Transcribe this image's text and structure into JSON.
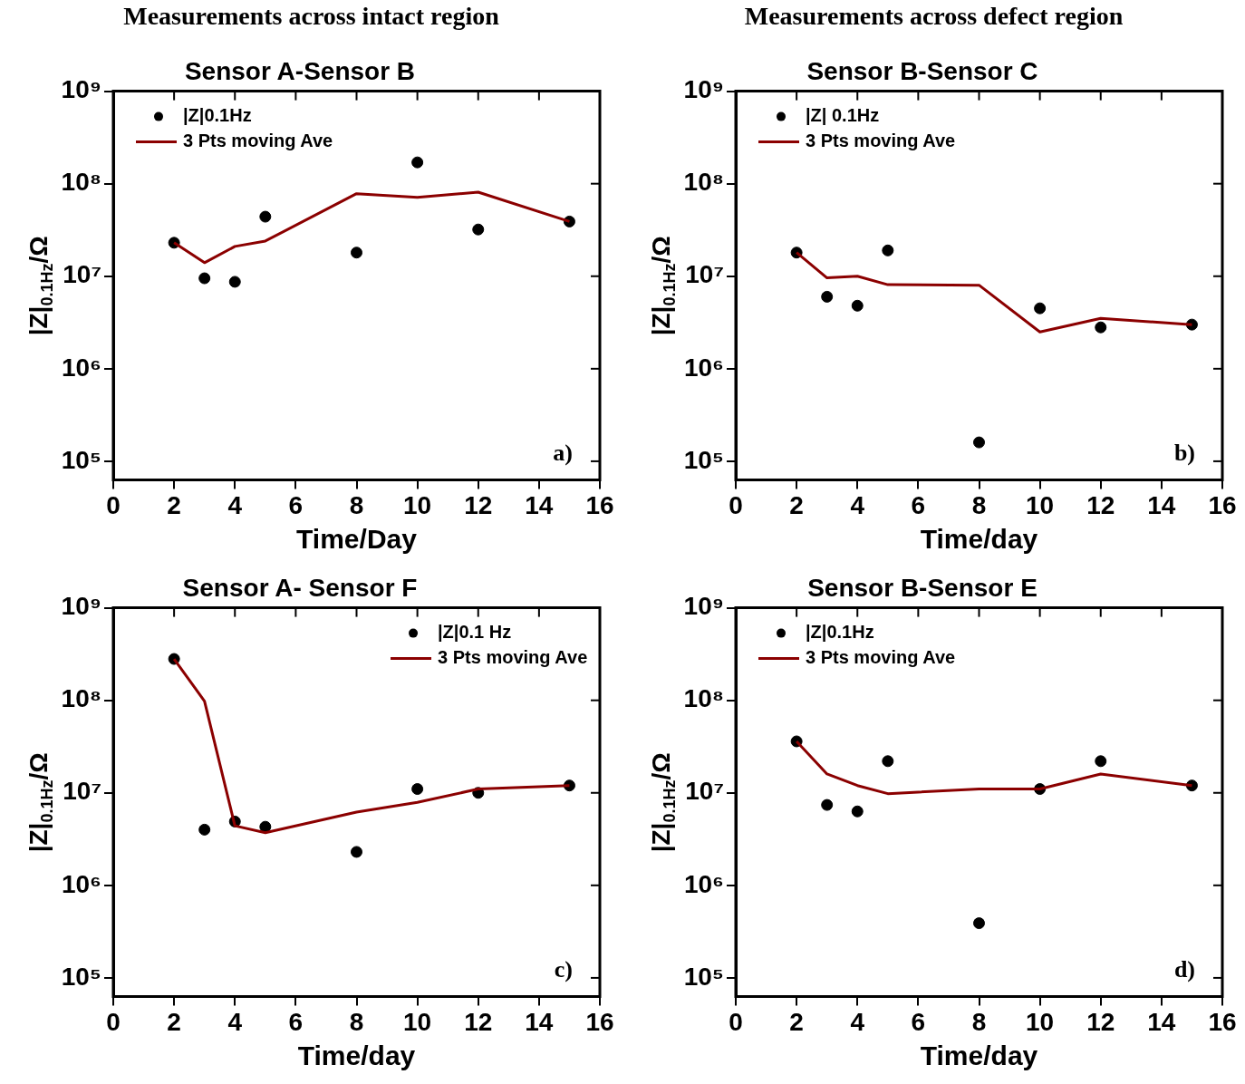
{
  "chart_data": [
    {
      "type": "scatter",
      "title": "Sensor A-Sensor B",
      "xlabel": "Time/Day",
      "ylabel": "|Z|$_{0.1Hz}$/Ω",
      "annotations": [
        "Measurements across intact region",
        "a)"
      ],
      "log": "y",
      "legend": "top left",
      "x": [
        2,
        3,
        4,
        5,
        8,
        10,
        12,
        15
      ],
      "xlim": [
        0,
        16
      ],
      "xticks": [
        0,
        2,
        4,
        6,
        8,
        10,
        12,
        14,
        16
      ],
      "ylim": [
        63000,
        1000000000
      ],
      "yticks": [
        {
          "value": 100000,
          "label": "10⁵"
        },
        {
          "value": 1000000,
          "label": "10⁶"
        },
        {
          "value": 10000000,
          "label": "10⁷"
        },
        {
          "value": 100000000,
          "label": "10⁸"
        },
        {
          "value": 1000000000,
          "label": "10⁹"
        }
      ],
      "series": [
        {
          "name": "|Z|0.1Hz",
          "type": "scatter",
          "marker": "circle",
          "color": "#000000",
          "values": [
            23000000,
            9500000,
            8700000,
            44000000,
            18000000,
            170000000,
            32000000,
            39000000
          ]
        },
        {
          "name": "3 Pts moving Ave",
          "type": "line",
          "marker": "none",
          "color": "#8b0000",
          "values": [
            23000000,
            14000000,
            21000000,
            24000000,
            78000000,
            71000000,
            81000000,
            39000000
          ]
        }
      ]
    },
    {
      "type": "scatter",
      "title": "Sensor B-Sensor C",
      "xlabel": "Time/day",
      "ylabel": "|Z|$_{0.1Hz}$/Ω",
      "annotations": [
        "Measurements across defect region",
        "b)"
      ],
      "log": "y",
      "legend": "top left",
      "x": [
        2,
        3,
        4,
        5,
        8,
        10,
        12,
        15
      ],
      "xlim": [
        0,
        16
      ],
      "xticks": [
        0,
        2,
        4,
        6,
        8,
        10,
        12,
        14,
        16
      ],
      "ylim": [
        63000,
        1000000000
      ],
      "yticks": [
        {
          "value": 100000,
          "label": "10⁵"
        },
        {
          "value": 1000000,
          "label": "10⁶"
        },
        {
          "value": 10000000,
          "label": "10⁷"
        },
        {
          "value": 100000000,
          "label": "10⁸"
        },
        {
          "value": 1000000000,
          "label": "10⁹"
        }
      ],
      "series": [
        {
          "name": "|Z| 0.1Hz",
          "type": "scatter",
          "marker": "circle",
          "color": "#000000",
          "values": [
            18000000,
            6000000,
            4800000,
            19000000,
            160000,
            4500000,
            2800000,
            3000000
          ]
        },
        {
          "name": "3 Pts moving Ave",
          "type": "line",
          "marker": "none",
          "color": "#8b0000",
          "values": [
            18000000,
            9600000,
            10000000,
            8100000,
            8000000,
            2500000,
            3500000,
            3000000
          ]
        }
      ]
    },
    {
      "type": "scatter",
      "title": "Sensor A- Sensor F",
      "xlabel": "Time/day",
      "ylabel": "|Z|$_{0.1Hz}$/Ω",
      "annotations": [
        "c)"
      ],
      "log": "y",
      "legend": "top right",
      "x": [
        2,
        3,
        4,
        5,
        8,
        10,
        12,
        15
      ],
      "xlim": [
        0,
        16
      ],
      "xticks": [
        0,
        2,
        4,
        6,
        8,
        10,
        12,
        14,
        16
      ],
      "ylim": [
        63000,
        1000000000
      ],
      "yticks": [
        {
          "value": 100000,
          "label": "10⁵"
        },
        {
          "value": 1000000,
          "label": "10⁶"
        },
        {
          "value": 10000000,
          "label": "10⁷"
        },
        {
          "value": 100000000,
          "label": "10⁸"
        },
        {
          "value": 1000000000,
          "label": "10⁹"
        }
      ],
      "series": [
        {
          "name": "|Z|0.1 Hz",
          "type": "scatter",
          "marker": "circle",
          "color": "#000000",
          "values": [
            280000000,
            4000000,
            4900000,
            4300000,
            2300000,
            11000000,
            10000000,
            12000000
          ]
        },
        {
          "name": "3 Pts moving Ave",
          "type": "line",
          "marker": "none",
          "color": "#8b0000",
          "values": [
            280000000,
            98000000,
            4400000,
            3700000,
            6200000,
            7900000,
            11000000,
            12000000
          ]
        }
      ]
    },
    {
      "type": "scatter",
      "title": "Sensor B-Sensor E",
      "xlabel": "Time/day",
      "ylabel": "|Z|$_{0.1Hz}$/Ω",
      "annotations": [
        "d)"
      ],
      "log": "y",
      "legend": "top left",
      "x": [
        2,
        3,
        4,
        5,
        8,
        10,
        12,
        15
      ],
      "xlim": [
        0,
        16
      ],
      "xticks": [
        0,
        2,
        4,
        6,
        8,
        10,
        12,
        14,
        16
      ],
      "ylim": [
        63000,
        1000000000
      ],
      "yticks": [
        {
          "value": 100000,
          "label": "10⁵"
        },
        {
          "value": 1000000,
          "label": "10⁶"
        },
        {
          "value": 10000000,
          "label": "10⁷"
        },
        {
          "value": 100000000,
          "label": "10⁸"
        },
        {
          "value": 1000000000,
          "label": "10⁹"
        }
      ],
      "series": [
        {
          "name": "|Z|0.1Hz",
          "type": "scatter",
          "marker": "circle",
          "color": "#000000",
          "values": [
            36000000,
            7400000,
            6300000,
            22000000,
            390000,
            11000000,
            22000000,
            12000000
          ]
        },
        {
          "name": "3 Pts moving Ave",
          "type": "line",
          "marker": "none",
          "color": "#8b0000",
          "values": [
            36000000,
            16000000,
            12000000,
            9800000,
            11000000,
            11000000,
            16000000,
            12000000
          ]
        }
      ]
    }
  ]
}
